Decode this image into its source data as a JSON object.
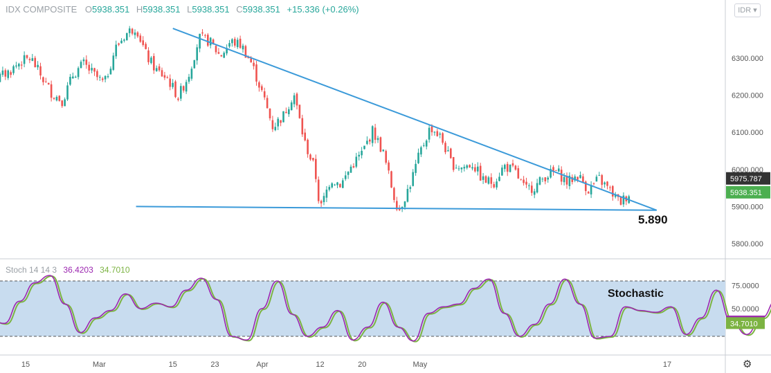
{
  "header": {
    "symbol": "IDX COMPOSITE",
    "o_label": "O",
    "o_value": "5938.351",
    "h_label": "H",
    "h_value": "5938.351",
    "l_label": "L",
    "l_value": "5938.351",
    "c_label": "C",
    "c_value": "5938.351",
    "change": "+15.336 (+0.26%)"
  },
  "currency_button": "IDR ▾",
  "stoch_header": {
    "name": "Stoch 14 14 3",
    "k": "36.4203",
    "d": "34.7010"
  },
  "colors": {
    "up": "#26a69a",
    "down": "#ef5350",
    "trend": "#3b9ad9",
    "stoch_k": "#9c27b0",
    "stoch_d": "#7cb342",
    "band": "#c8dcef"
  },
  "annotations": {
    "support_label": "5.890",
    "stoch_label": "Stochastic"
  },
  "price_badges": [
    {
      "value": "5975.787",
      "bg": "#333333"
    },
    {
      "value": "5938.351",
      "bg": "#4caf50"
    }
  ],
  "stoch_badges": [
    {
      "value": "36.4203",
      "bg": "#9c27b0"
    },
    {
      "value": "34.7010",
      "bg": "#7cb342"
    }
  ],
  "chart_data": [
    {
      "type": "candlestick",
      "title": "IDX COMPOSITE",
      "ylim": [
        5750,
        6440
      ],
      "y_ticks": [
        "6300.000",
        "6200.000",
        "6100.000",
        "6000.000",
        "5900.000",
        "5800.000"
      ],
      "x_ticks": [
        "15",
        "Mar",
        "15",
        "23",
        "Apr",
        "12",
        "20",
        "May",
        "17"
      ],
      "close_path": [
        [
          "Feb 05",
          6170
        ],
        [
          "Feb 07",
          6210
        ],
        [
          "Feb 09",
          6240
        ],
        [
          "Feb 12",
          6265
        ],
        [
          "Feb 14",
          6290
        ],
        [
          "Feb 16",
          6300
        ],
        [
          "Feb 18",
          6250
        ],
        [
          "Feb 20",
          6205
        ],
        [
          "Feb 22",
          6185
        ],
        [
          "Feb 24",
          6255
        ],
        [
          "Feb 26",
          6285
        ],
        [
          "Feb 28",
          6255
        ],
        [
          "Mar 02",
          6230
        ],
        [
          "Mar 04",
          6325
        ],
        [
          "Mar 06",
          6365
        ],
        [
          "Mar 08",
          6385
        ],
        [
          "Mar 10",
          6305
        ],
        [
          "Mar 12",
          6265
        ],
        [
          "Mar 14",
          6245
        ],
        [
          "Mar 16",
          6195
        ],
        [
          "Mar 18",
          6255
        ],
        [
          "Mar 20",
          6355
        ],
        [
          "Mar 22",
          6345
        ],
        [
          "Mar 24",
          6305
        ],
        [
          "Mar 26",
          6345
        ],
        [
          "Mar 28",
          6335
        ],
        [
          "Mar 30",
          6285
        ],
        [
          "Apr 01",
          6205
        ],
        [
          "Apr 03",
          6115
        ],
        [
          "Apr 05",
          6145
        ],
        [
          "Apr 07",
          6205
        ],
        [
          "Apr 09",
          6075
        ],
        [
          "Apr 11",
          6000
        ],
        [
          "Apr 12",
          5890
        ],
        [
          "Apr 14",
          5975
        ],
        [
          "Apr 16",
          5960
        ],
        [
          "Apr 18",
          6010
        ],
        [
          "Apr 20",
          6045
        ],
        [
          "Apr 22",
          6105
        ],
        [
          "Apr 24",
          6045
        ],
        [
          "Apr 26",
          5930
        ],
        [
          "Apr 27",
          5890
        ],
        [
          "Apr 29",
          5955
        ],
        [
          "May 01",
          6045
        ],
        [
          "May 03",
          6115
        ],
        [
          "May 05",
          6085
        ],
        [
          "May 07",
          6015
        ],
        [
          "May 09",
          6005
        ],
        [
          "May 11",
          6015
        ],
        [
          "May 13",
          5970
        ],
        [
          "May 15",
          5965
        ],
        [
          "May 17",
          6010
        ],
        [
          "May 19",
          5995
        ],
        [
          "May 21",
          5945
        ],
        [
          "May 23",
          5955
        ],
        [
          "May 25",
          5985
        ],
        [
          "May 27",
          5995
        ],
        [
          "May 29",
          5965
        ],
        [
          "May 31",
          5985
        ],
        [
          "Jun 02",
          5945
        ],
        [
          "Jun 04",
          5975
        ],
        [
          "Jun 06",
          5945
        ],
        [
          "Jun 08",
          5910
        ],
        [
          "Jun 10",
          5938
        ]
      ],
      "last_close": 5938.351,
      "trendlines": [
        {
          "name": "resistance",
          "from": [
            "Mar 15",
            6380
          ],
          "to": [
            "Jun 15",
            5890
          ]
        },
        {
          "name": "support",
          "from": [
            "Mar 08",
            5900
          ],
          "to": [
            "Jun 15",
            5890
          ]
        }
      ]
    },
    {
      "type": "line",
      "title": "Stoch 14 14 3",
      "ylim": [
        0,
        100
      ],
      "y_ticks": [
        "75.0000",
        "50.0000"
      ],
      "band": [
        20,
        80
      ],
      "series": [
        {
          "name": "%K",
          "last": 36.4203
        },
        {
          "name": "%D",
          "last": 34.701
        }
      ],
      "k_path": [
        [
          "Feb 05",
          72
        ],
        [
          "Feb 08",
          38
        ],
        [
          "Feb 11",
          34
        ],
        [
          "Feb 14",
          58
        ],
        [
          "Feb 17",
          78
        ],
        [
          "Feb 20",
          86
        ],
        [
          "Feb 23",
          55
        ],
        [
          "Feb 26",
          24
        ],
        [
          "Mar 01",
          40
        ],
        [
          "Mar 04",
          48
        ],
        [
          "Mar 07",
          66
        ],
        [
          "Mar 10",
          50
        ],
        [
          "Mar 13",
          56
        ],
        [
          "Mar 16",
          52
        ],
        [
          "Mar 19",
          70
        ],
        [
          "Mar 22",
          83
        ],
        [
          "Mar 25",
          60
        ],
        [
          "Mar 28",
          20
        ],
        [
          "Mar 31",
          16
        ],
        [
          "Apr 03",
          50
        ],
        [
          "Apr 06",
          80
        ],
        [
          "Apr 09",
          44
        ],
        [
          "Apr 12",
          20
        ],
        [
          "Apr 15",
          30
        ],
        [
          "Apr 18",
          48
        ],
        [
          "Apr 21",
          16
        ],
        [
          "Apr 24",
          30
        ],
        [
          "Apr 27",
          57
        ],
        [
          "Apr 30",
          30
        ],
        [
          "May 03",
          15
        ],
        [
          "May 06",
          45
        ],
        [
          "May 09",
          52
        ],
        [
          "May 12",
          55
        ],
        [
          "May 15",
          72
        ],
        [
          "May 18",
          82
        ],
        [
          "May 21",
          45
        ],
        [
          "May 24",
          20
        ],
        [
          "May 27",
          33
        ],
        [
          "May 30",
          55
        ],
        [
          "Jun 02",
          82
        ],
        [
          "Jun 05",
          55
        ],
        [
          "Jun 08",
          18
        ],
        [
          "Jun 11",
          20
        ],
        [
          "Jun 14",
          52
        ],
        [
          "Jun 17",
          48
        ],
        [
          "Jun 20",
          46
        ],
        [
          "Jun 23",
          52
        ],
        [
          "Jun 26",
          22
        ],
        [
          "Jun 29",
          40
        ],
        [
          "Jul 02",
          70
        ],
        [
          "Jul 05",
          36
        ],
        [
          "Jul 08",
          22
        ],
        [
          "Jul 11",
          40
        ],
        [
          "Jul 14",
          60
        ],
        [
          "Jul 17",
          44
        ],
        [
          "Jul 20",
          40
        ],
        [
          "Jul 23",
          36
        ]
      ]
    }
  ]
}
